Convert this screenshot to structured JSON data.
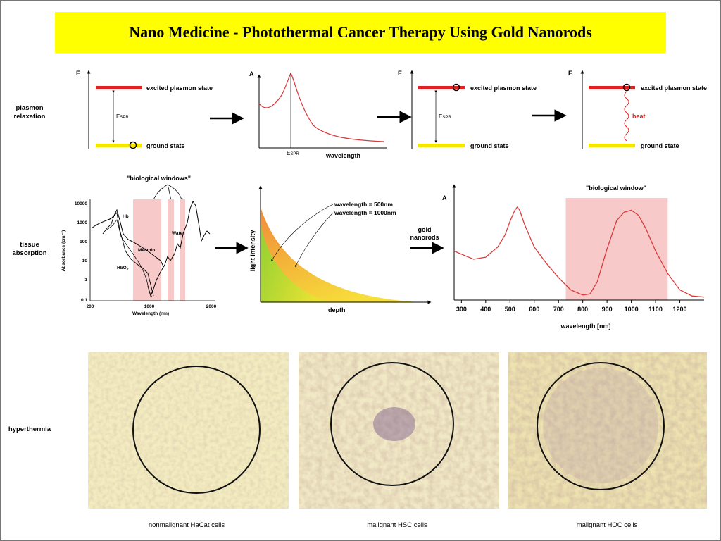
{
  "title": "Nano Medicine - Photothermal Cancer Therapy Using Gold Nanorods",
  "rows": {
    "plasmon": [
      "plasmon",
      "relaxation"
    ],
    "tissue": [
      "tissue",
      "absorption"
    ],
    "hyperthermia": "hyperthermia"
  },
  "energy_diagrams": {
    "axis_label": "E",
    "excited": "excited plasmon state",
    "ground": "ground state",
    "espr_main": "E",
    "espr_sub": "SPR",
    "heat": "heat"
  },
  "plasmon_spectrum": {
    "y_label": "A",
    "x_label": "wavelength",
    "espr_main": "E",
    "espr_sub": "SPR"
  },
  "tissue_chart": {
    "annotation": "\"biological windows\"",
    "ylabel": "Absorbance (cm⁻¹)",
    "xlabel": "Wavelength (nm)",
    "yticks": [
      "10000",
      "1000",
      "100",
      "10",
      "1",
      "0.1"
    ],
    "xticks": [
      "200",
      "1000",
      "2000"
    ],
    "curve_labels": {
      "hb": "Hb",
      "water": "Water",
      "melanin": "Melanin",
      "hbo2": "HbO",
      "hbo2_sub": "2"
    }
  },
  "depth_chart": {
    "ylabel": "light intensity",
    "xlabel": "depth",
    "legend": [
      "wavelength = 500nm",
      "wavelength = 1000nm"
    ]
  },
  "gold_label": [
    "gold",
    "nanorods"
  ],
  "absorption_chart": {
    "type": "line",
    "y_label": "A",
    "annotation": "\"biological window\"",
    "xlabel": "wavelength [nm]",
    "xticks": [
      300,
      400,
      500,
      600,
      700,
      800,
      900,
      1000,
      1100,
      1200
    ],
    "xlim": [
      270,
      1300
    ],
    "window": [
      730,
      1150
    ],
    "x": [
      270,
      300,
      350,
      400,
      450,
      480,
      500,
      520,
      530,
      540,
      560,
      600,
      650,
      700,
      750,
      800,
      830,
      860,
      900,
      940,
      970,
      1000,
      1030,
      1060,
      1100,
      1150,
      1200,
      1250,
      1300
    ],
    "y": [
      0.48,
      0.45,
      0.4,
      0.42,
      0.52,
      0.64,
      0.77,
      0.88,
      0.91,
      0.88,
      0.74,
      0.52,
      0.36,
      0.22,
      0.1,
      0.05,
      0.06,
      0.18,
      0.5,
      0.78,
      0.86,
      0.88,
      0.83,
      0.7,
      0.48,
      0.26,
      0.1,
      0.04,
      0.03
    ]
  },
  "captions": [
    "nonmalignant HaCat cells",
    "malignant HSC cells",
    "malignant HOC cells"
  ],
  "colors": {
    "title_bg": "#ffff00",
    "excited": "#e32020",
    "ground": "#f5e600",
    "window": "#f7c9c9",
    "curve": "#d93a3a",
    "tissue_bg": "#f0e9b8"
  }
}
